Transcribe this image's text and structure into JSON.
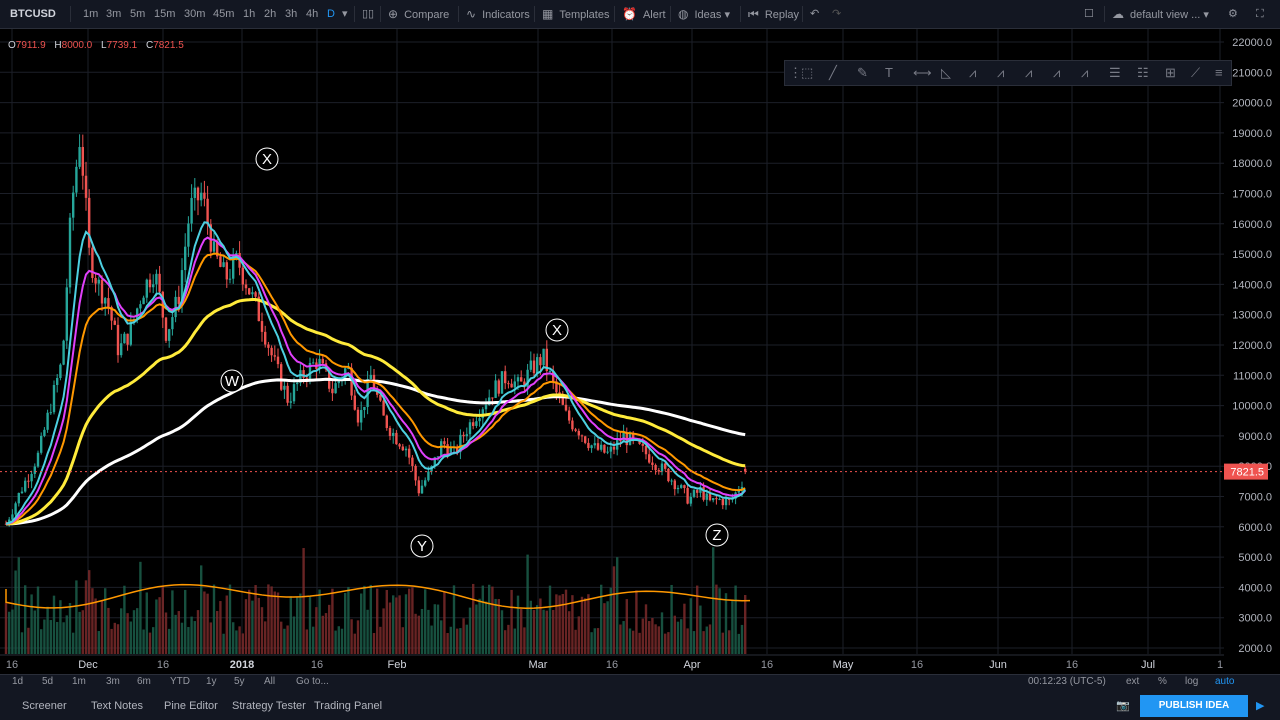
{
  "toolbar": {
    "symbol": "BTCUSD",
    "intervals": [
      "1m",
      "3m",
      "5m",
      "15m",
      "30m",
      "45m",
      "1h",
      "2h",
      "3h",
      "4h",
      "D"
    ],
    "active_interval": "D",
    "compare": "Compare",
    "indicators": "Indicators",
    "templates": "Templates",
    "alert": "Alert",
    "ideas": "Ideas",
    "replay": "Replay",
    "layout": "default view ..."
  },
  "legend": {
    "o_label": "O",
    "o": "7911.9",
    "h_label": "H",
    "h": "8000.0",
    "l_label": "L",
    "l": "7739.1",
    "c_label": "C",
    "c": "7821.5"
  },
  "chart_data": {
    "type": "candlestick",
    "price_axis": [
      "22000.0",
      "21000.0",
      "20000.0",
      "19000.0",
      "18000.0",
      "17000.0",
      "16000.0",
      "15000.0",
      "14000.0",
      "13000.0",
      "12000.0",
      "11000.0",
      "10000.0",
      "9000.0",
      "8000.0",
      "7000.0",
      "6000.0",
      "5000.0",
      "4000.0",
      "3000.0",
      "2000.0"
    ],
    "ylim": [
      2000,
      22000
    ],
    "last_price": "7821.5",
    "time_axis": [
      "16",
      "Dec",
      "16",
      "2018",
      "16",
      "Feb",
      "Mar",
      "16",
      "Apr",
      "16",
      "May",
      "16",
      "Jun",
      "16",
      "Jul",
      "1"
    ],
    "wave_labels": [
      "X",
      "W",
      "X",
      "Y",
      "Z"
    ],
    "colors": {
      "up": "#26a69a",
      "down": "#ef5350",
      "ma_yellow": "#ffeb3b",
      "ma_white": "#ffffff",
      "ma_cyan": "#4dd0e1",
      "ma_magenta": "#e040fb",
      "ma_orange": "#ff9800"
    }
  },
  "range_bar": {
    "ranges": [
      "1d",
      "5d",
      "1m",
      "3m",
      "6m",
      "YTD",
      "1y",
      "5y",
      "All"
    ],
    "goto": "Go to...",
    "clock": "00:12:23 (UTC-5)",
    "ext": "ext",
    "pct": "%",
    "log": "log",
    "auto": "auto"
  },
  "bottom_tabs": [
    "Screener",
    "Text Notes",
    "Pine Editor",
    "Strategy Tester",
    "Trading Panel"
  ],
  "publish": "PUBLISH IDEA"
}
